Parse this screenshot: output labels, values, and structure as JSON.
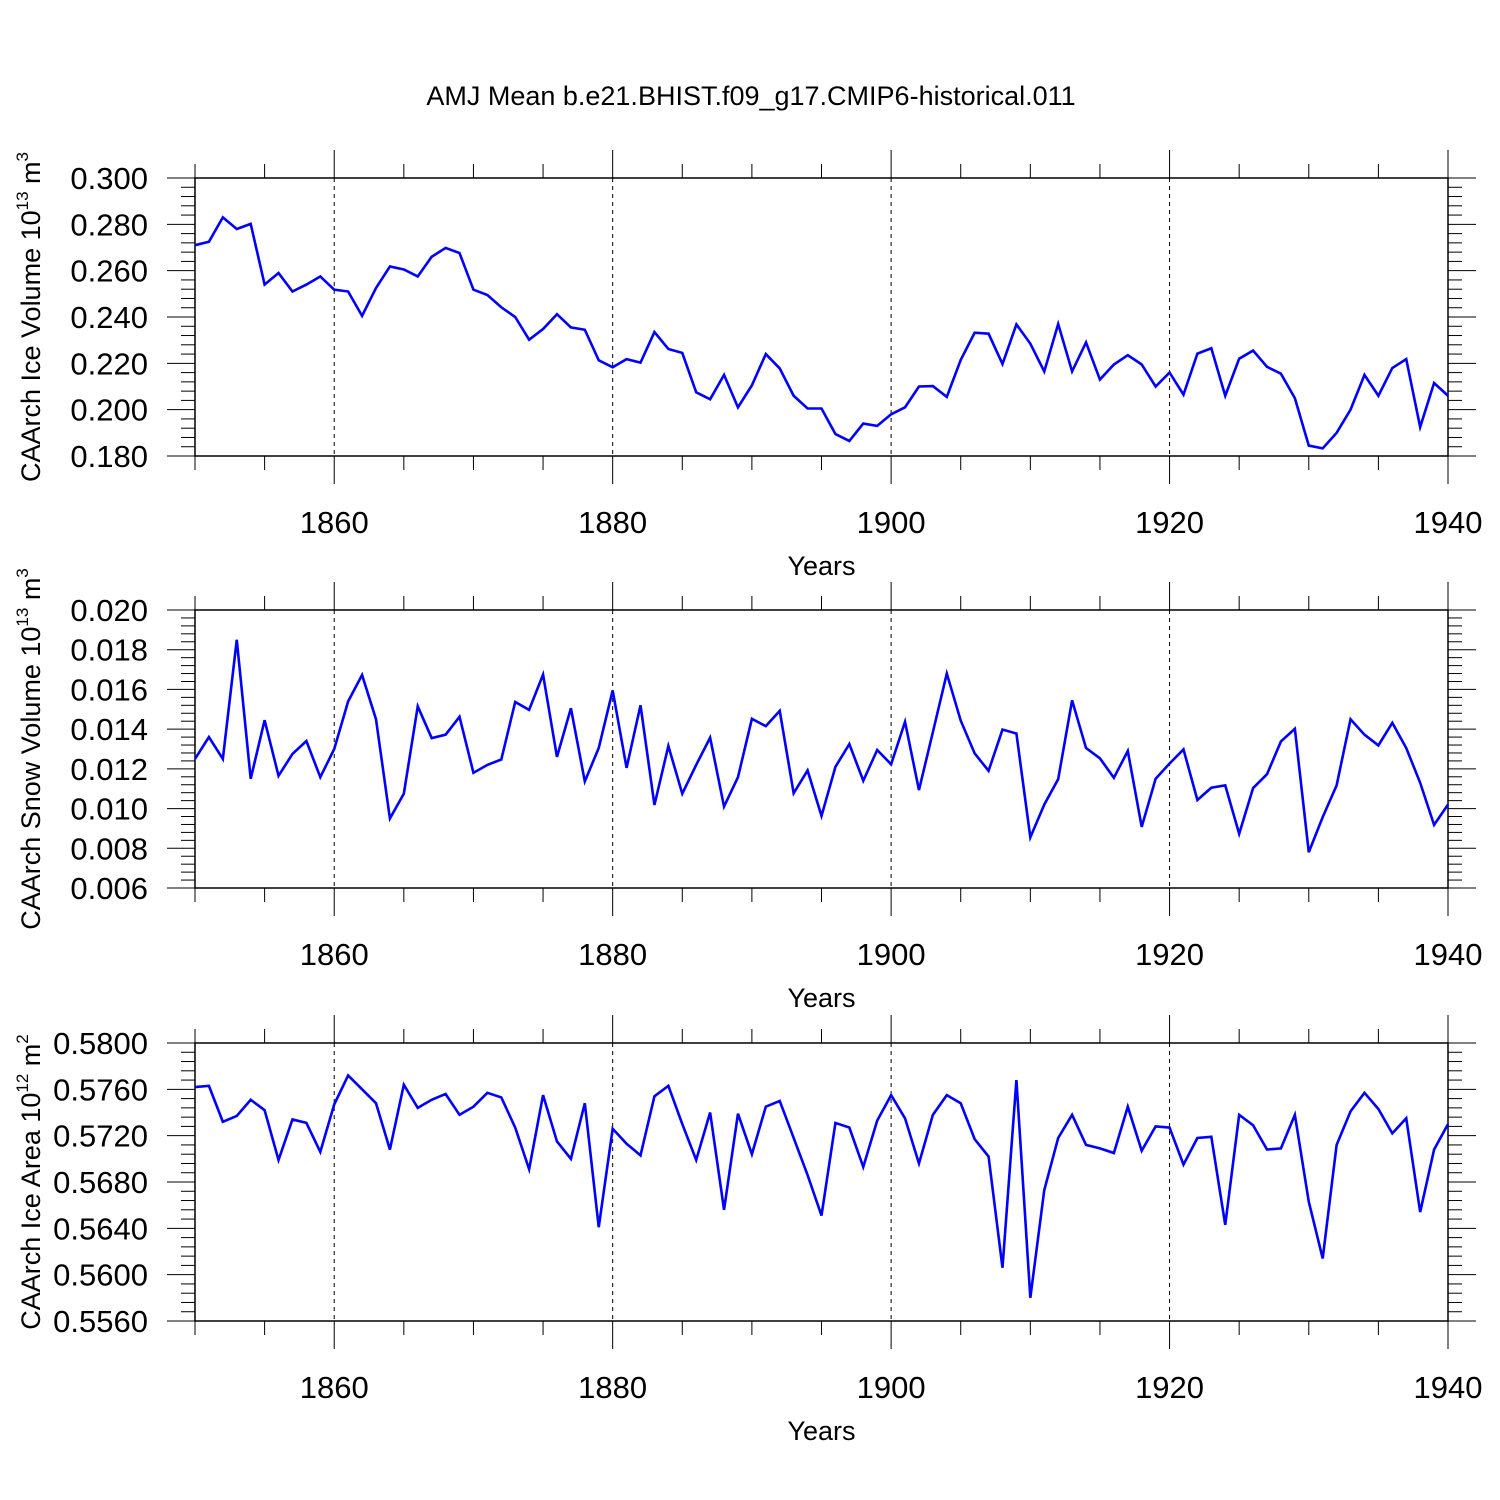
{
  "title": "AMJ Mean b.e21.BHIST.f09_g17.CMIP6-historical.011",
  "colors": {
    "line": "#0000ff",
    "axis": "#000000",
    "grid": "#000000"
  },
  "chart_data": [
    {
      "type": "line",
      "ylabel": "CAArch Ice Volume 10",
      "yunit_exp": "13",
      "yunit": " m",
      "yunit_pow": "3",
      "xlabel": "Years",
      "xlim": [
        1850,
        1940
      ],
      "ylim": [
        0.18,
        0.3
      ],
      "yticks": [
        "0.180",
        "0.200",
        "0.220",
        "0.240",
        "0.260",
        "0.280",
        "0.300"
      ],
      "ytick_values": [
        0.18,
        0.2,
        0.22,
        0.24,
        0.26,
        0.28,
        0.3
      ],
      "xticks": [
        "1860",
        "1880",
        "1900",
        "1920",
        "1940"
      ],
      "xtick_values": [
        1860,
        1880,
        1900,
        1920,
        1940
      ],
      "series": [
        {
          "name": "CAArch Ice Volume",
          "x_start": 1850,
          "values": [
            0.271,
            0.2725,
            0.283,
            0.278,
            0.2802,
            0.254,
            0.259,
            0.251,
            0.254,
            0.2575,
            0.2518,
            0.251,
            0.2405,
            0.2525,
            0.2618,
            0.2605,
            0.2575,
            0.266,
            0.2698,
            0.2676,
            0.2518,
            0.2495,
            0.2442,
            0.24,
            0.2302,
            0.2348,
            0.2412,
            0.2355,
            0.2345,
            0.2213,
            0.2183,
            0.2218,
            0.2203,
            0.2335,
            0.2262,
            0.2245,
            0.2075,
            0.2045,
            0.215,
            0.201,
            0.2105,
            0.224,
            0.2178,
            0.206,
            0.2005,
            0.2005,
            0.1895,
            0.1865,
            0.194,
            0.193,
            0.198,
            0.201,
            0.21,
            0.2102,
            0.2055,
            0.2215,
            0.2332,
            0.2328,
            0.2197,
            0.2368,
            0.2285,
            0.2165,
            0.237,
            0.2165,
            0.229,
            0.213,
            0.2195,
            0.2235,
            0.2195,
            0.21,
            0.216,
            0.2065,
            0.2242,
            0.2265,
            0.206,
            0.222,
            0.2255,
            0.2185,
            0.2155,
            0.205,
            0.1845,
            0.1833,
            0.19,
            0.2,
            0.215,
            0.206,
            0.218,
            0.2218,
            0.1925,
            0.2115,
            0.206
          ]
        }
      ]
    },
    {
      "type": "line",
      "ylabel": "CAArch Snow Volume 10",
      "yunit_exp": "13",
      "yunit": " m",
      "yunit_pow": "3",
      "xlabel": "Years",
      "xlim": [
        1850,
        1940
      ],
      "ylim": [
        0.006,
        0.02
      ],
      "yticks": [
        "0.006",
        "0.008",
        "0.010",
        "0.012",
        "0.014",
        "0.016",
        "0.018",
        "0.020"
      ],
      "ytick_values": [
        0.006,
        0.008,
        0.01,
        0.012,
        0.014,
        0.016,
        0.018,
        0.02
      ],
      "xticks": [
        "1860",
        "1880",
        "1900",
        "1920",
        "1940"
      ],
      "xtick_values": [
        1860,
        1880,
        1900,
        1920,
        1940
      ],
      "series": [
        {
          "name": "CAArch Snow Volume",
          "x_start": 1850,
          "values": [
            0.0125,
            0.0136,
            0.0125,
            0.0185,
            0.0115,
            0.01445,
            0.01165,
            0.01275,
            0.0134,
            0.01158,
            0.013,
            0.0154,
            0.01673,
            0.0145,
            0.0095,
            0.01075,
            0.01515,
            0.01355,
            0.01372,
            0.01462,
            0.0118,
            0.0122,
            0.01247,
            0.01537,
            0.01497,
            0.01675,
            0.0126,
            0.01505,
            0.01137,
            0.01305,
            0.01595,
            0.01205,
            0.0152,
            0.01018,
            0.01315,
            0.01075,
            0.0122,
            0.01357,
            0.0101,
            0.01158,
            0.01452,
            0.01415,
            0.01492,
            0.01077,
            0.01192,
            0.00963,
            0.0121,
            0.01325,
            0.0114,
            0.01295,
            0.01223,
            0.01437,
            0.01093,
            0.01385,
            0.0168,
            0.01443,
            0.01278,
            0.0119,
            0.01398,
            0.01378,
            0.00855,
            0.0102,
            0.01148,
            0.01545,
            0.01305,
            0.01253,
            0.01155,
            0.0129,
            0.00908,
            0.0115,
            0.01227,
            0.01298,
            0.01043,
            0.01105,
            0.01117,
            0.00873,
            0.01103,
            0.01173,
            0.01338,
            0.01402,
            0.0078,
            0.00957,
            0.01117,
            0.0145,
            0.01372,
            0.01318,
            0.01432,
            0.01305,
            0.0113,
            0.00918,
            0.0102
          ]
        }
      ]
    },
    {
      "type": "line",
      "ylabel": "CAArch Ice Area 10",
      "yunit_exp": "12",
      "yunit": " m",
      "yunit_pow": "2",
      "xlabel": "Years",
      "xlim": [
        1850,
        1940
      ],
      "ylim": [
        0.556,
        0.58
      ],
      "yticks": [
        "0.5560",
        "0.5600",
        "0.5640",
        "0.5680",
        "0.5720",
        "0.5760",
        "0.5800"
      ],
      "ytick_values": [
        0.556,
        0.56,
        0.564,
        0.568,
        0.572,
        0.576,
        0.58
      ],
      "xticks": [
        "1860",
        "1880",
        "1900",
        "1920",
        "1940"
      ],
      "xtick_values": [
        1860,
        1880,
        1900,
        1920,
        1940
      ],
      "series": [
        {
          "name": "CAArch Ice Area",
          "x_start": 1850,
          "values": [
            0.5762,
            0.5763,
            0.5732,
            0.5737,
            0.5751,
            0.5742,
            0.5699,
            0.5734,
            0.5731,
            0.5706,
            0.5747,
            0.5772,
            0.576,
            0.5748,
            0.5708,
            0.5764,
            0.5744,
            0.5751,
            0.5756,
            0.5738,
            0.5745,
            0.5757,
            0.5753,
            0.5727,
            0.5691,
            0.5755,
            0.5715,
            0.57,
            0.5748,
            0.5641,
            0.5726,
            0.5713,
            0.5703,
            0.5754,
            0.5763,
            0.573,
            0.5699,
            0.574,
            0.5656,
            0.5739,
            0.5704,
            0.5745,
            0.575,
            0.5718,
            0.5686,
            0.5651,
            0.5731,
            0.5727,
            0.5693,
            0.5733,
            0.5755,
            0.5735,
            0.5696,
            0.5738,
            0.5755,
            0.5748,
            0.5717,
            0.5702,
            0.5606,
            0.5768,
            0.558,
            0.5673,
            0.5718,
            0.5738,
            0.5712,
            0.5709,
            0.5705,
            0.5745,
            0.5707,
            0.5728,
            0.5727,
            0.5695,
            0.5718,
            0.5719,
            0.5643,
            0.5738,
            0.5729,
            0.5708,
            0.5709,
            0.5738,
            0.5663,
            0.5614,
            0.5712,
            0.5741,
            0.5757,
            0.5743,
            0.5722,
            0.5735,
            0.5654,
            0.5708,
            0.573
          ]
        }
      ]
    }
  ]
}
